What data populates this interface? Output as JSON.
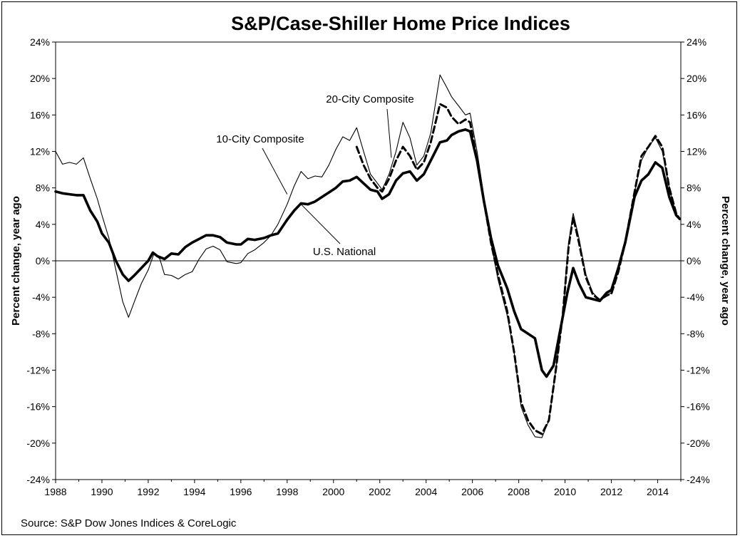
{
  "chart_data": {
    "type": "line",
    "title": "S&P/Case-Shiller Home Price Indices",
    "ylabel_left": "Percent change, year ago",
    "ylabel_right": "Percent change, year ago",
    "source": "Source: S&P Dow Jones Indices & CoreLogic",
    "xlim": [
      1988,
      2015
    ],
    "ylim": [
      -24,
      24
    ],
    "x_ticks": [
      1988,
      1990,
      1992,
      1994,
      1996,
      1998,
      2000,
      2002,
      2004,
      2006,
      2008,
      2010,
      2012,
      2014
    ],
    "x_tick_labels": [
      "1988",
      "1990",
      "1992",
      "1994",
      "1996",
      "1998",
      "2000",
      "2002",
      "2004",
      "2006",
      "2008",
      "2010",
      "2012",
      "2014"
    ],
    "y_ticks": [
      24,
      20,
      16,
      12,
      8,
      4,
      0,
      -4,
      -8,
      -12,
      -16,
      -20,
      -24
    ],
    "y_tick_labels": [
      "24%",
      "20%",
      "16%",
      "12%",
      "8%",
      "4%",
      "0%",
      "-4%",
      "-8%",
      "-12%",
      "-16%",
      "-20%",
      "-24%"
    ],
    "grid": false,
    "zero_line": true,
    "series": [
      {
        "name": "10-City Composite",
        "style": "thin",
        "color": "#000000",
        "points": [
          [
            1988.0,
            12.0
          ],
          [
            1988.3,
            10.6
          ],
          [
            1988.6,
            10.8
          ],
          [
            1988.9,
            10.6
          ],
          [
            1989.2,
            11.3
          ],
          [
            1989.5,
            9.0
          ],
          [
            1989.8,
            6.8
          ],
          [
            1990.0,
            5.0
          ],
          [
            1990.3,
            2.5
          ],
          [
            1990.6,
            -1.0
          ],
          [
            1990.9,
            -4.5
          ],
          [
            1991.15,
            -6.2
          ],
          [
            1991.4,
            -4.5
          ],
          [
            1991.7,
            -2.5
          ],
          [
            1992.0,
            -1.0
          ],
          [
            1992.25,
            0.8
          ],
          [
            1992.5,
            0.2
          ],
          [
            1992.7,
            -1.5
          ],
          [
            1993.0,
            -1.6
          ],
          [
            1993.3,
            -2.0
          ],
          [
            1993.6,
            -1.5
          ],
          [
            1993.9,
            -1.2
          ],
          [
            1994.2,
            0.2
          ],
          [
            1994.5,
            1.3
          ],
          [
            1994.8,
            1.6
          ],
          [
            1995.1,
            1.2
          ],
          [
            1995.4,
            -0.1
          ],
          [
            1995.8,
            -0.3
          ],
          [
            1996.0,
            -0.2
          ],
          [
            1996.3,
            0.8
          ],
          [
            1996.6,
            1.2
          ],
          [
            1997.0,
            2.0
          ],
          [
            1997.3,
            2.8
          ],
          [
            1997.6,
            4.0
          ],
          [
            1998.0,
            6.2
          ],
          [
            1998.3,
            8.2
          ],
          [
            1998.6,
            9.8
          ],
          [
            1998.9,
            9.0
          ],
          [
            1999.2,
            9.3
          ],
          [
            1999.5,
            9.2
          ],
          [
            1999.8,
            10.5
          ],
          [
            2000.1,
            12.2
          ],
          [
            2000.4,
            13.6
          ],
          [
            2000.7,
            13.2
          ],
          [
            2001.0,
            14.6
          ],
          [
            2001.3,
            12.0
          ],
          [
            2001.6,
            9.5
          ],
          [
            2001.9,
            8.5
          ],
          [
            2002.1,
            7.8
          ],
          [
            2002.4,
            9.5
          ],
          [
            2002.7,
            12.0
          ],
          [
            2003.0,
            15.2
          ],
          [
            2003.3,
            13.5
          ],
          [
            2003.6,
            10.5
          ],
          [
            2003.9,
            11.5
          ],
          [
            2004.2,
            14.0
          ],
          [
            2004.6,
            20.4
          ],
          [
            2004.9,
            19.0
          ],
          [
            2005.1,
            18.0
          ],
          [
            2005.4,
            17.0
          ],
          [
            2005.7,
            16.0
          ],
          [
            2005.9,
            16.2
          ],
          [
            2006.2,
            12.0
          ],
          [
            2006.5,
            7.0
          ],
          [
            2006.8,
            2.0
          ],
          [
            2007.1,
            -2.0
          ],
          [
            2007.5,
            -6.0
          ],
          [
            2007.8,
            -10.0
          ],
          [
            2008.1,
            -16.0
          ],
          [
            2008.4,
            -18.0
          ],
          [
            2008.7,
            -19.3
          ],
          [
            2009.0,
            -19.4
          ],
          [
            2009.3,
            -17.5
          ],
          [
            2009.6,
            -12.0
          ],
          [
            2009.9,
            -6.0
          ],
          [
            2010.15,
            2.0
          ],
          [
            2010.35,
            5.2
          ],
          [
            2010.6,
            2.5
          ],
          [
            2010.9,
            -1.5
          ],
          [
            2011.2,
            -3.5
          ],
          [
            2011.5,
            -4.3
          ],
          [
            2011.8,
            -3.8
          ],
          [
            2012.0,
            -3.5
          ],
          [
            2012.3,
            -1.0
          ],
          [
            2012.6,
            2.0
          ],
          [
            2013.0,
            7.5
          ],
          [
            2013.3,
            11.0
          ],
          [
            2013.6,
            12.5
          ],
          [
            2013.9,
            13.5
          ],
          [
            2014.2,
            12.0
          ],
          [
            2014.5,
            8.0
          ],
          [
            2014.8,
            5.0
          ],
          [
            2014.95,
            4.5
          ]
        ]
      },
      {
        "name": "20-City Composite",
        "style": "dashed",
        "color": "#000000",
        "points": [
          [
            2001.0,
            12.5
          ],
          [
            2001.3,
            10.5
          ],
          [
            2001.6,
            9.0
          ],
          [
            2001.9,
            8.0
          ],
          [
            2002.1,
            7.6
          ],
          [
            2002.4,
            9.0
          ],
          [
            2002.7,
            11.0
          ],
          [
            2003.0,
            12.5
          ],
          [
            2003.3,
            11.5
          ],
          [
            2003.6,
            10.0
          ],
          [
            2003.9,
            10.8
          ],
          [
            2004.2,
            13.0
          ],
          [
            2004.6,
            17.2
          ],
          [
            2004.9,
            16.8
          ],
          [
            2005.1,
            15.8
          ],
          [
            2005.4,
            15.0
          ],
          [
            2005.7,
            15.5
          ],
          [
            2005.9,
            15.2
          ],
          [
            2006.2,
            11.0
          ],
          [
            2006.5,
            6.5
          ],
          [
            2006.8,
            2.0
          ],
          [
            2007.1,
            -1.5
          ],
          [
            2007.5,
            -5.5
          ],
          [
            2007.8,
            -10.0
          ],
          [
            2008.1,
            -15.5
          ],
          [
            2008.4,
            -17.5
          ],
          [
            2008.7,
            -18.6
          ],
          [
            2009.0,
            -19.0
          ],
          [
            2009.3,
            -17.5
          ],
          [
            2009.6,
            -12.0
          ],
          [
            2009.9,
            -6.0
          ],
          [
            2010.15,
            1.5
          ],
          [
            2010.35,
            4.8
          ],
          [
            2010.6,
            2.0
          ],
          [
            2010.9,
            -1.8
          ],
          [
            2011.2,
            -3.7
          ],
          [
            2011.5,
            -4.3
          ],
          [
            2011.8,
            -3.8
          ],
          [
            2012.0,
            -3.6
          ],
          [
            2012.3,
            -1.2
          ],
          [
            2012.6,
            2.0
          ],
          [
            2013.0,
            7.5
          ],
          [
            2013.3,
            11.5
          ],
          [
            2013.6,
            12.5
          ],
          [
            2013.9,
            13.7
          ],
          [
            2014.2,
            12.5
          ],
          [
            2014.5,
            8.0
          ],
          [
            2014.8,
            5.2
          ],
          [
            2014.95,
            4.6
          ]
        ]
      },
      {
        "name": "U.S. National",
        "style": "thick",
        "color": "#000000",
        "points": [
          [
            1988.0,
            7.6
          ],
          [
            1988.3,
            7.4
          ],
          [
            1988.6,
            7.3
          ],
          [
            1988.9,
            7.2
          ],
          [
            1989.2,
            7.2
          ],
          [
            1989.5,
            5.5
          ],
          [
            1989.8,
            4.3
          ],
          [
            1990.0,
            3.0
          ],
          [
            1990.3,
            2.0
          ],
          [
            1990.6,
            0.0
          ],
          [
            1990.9,
            -1.5
          ],
          [
            1991.15,
            -2.2
          ],
          [
            1991.4,
            -1.6
          ],
          [
            1991.7,
            -0.8
          ],
          [
            1992.0,
            0.0
          ],
          [
            1992.2,
            0.9
          ],
          [
            1992.4,
            0.5
          ],
          [
            1992.7,
            0.2
          ],
          [
            1993.0,
            0.8
          ],
          [
            1993.3,
            0.7
          ],
          [
            1993.6,
            1.5
          ],
          [
            1993.9,
            2.0
          ],
          [
            1994.2,
            2.4
          ],
          [
            1994.5,
            2.8
          ],
          [
            1994.8,
            2.8
          ],
          [
            1995.1,
            2.6
          ],
          [
            1995.4,
            2.0
          ],
          [
            1995.8,
            1.8
          ],
          [
            1996.0,
            1.8
          ],
          [
            1996.3,
            2.4
          ],
          [
            1996.6,
            2.3
          ],
          [
            1997.0,
            2.5
          ],
          [
            1997.3,
            2.8
          ],
          [
            1997.6,
            3.0
          ],
          [
            1998.0,
            4.5
          ],
          [
            1998.3,
            5.5
          ],
          [
            1998.6,
            6.3
          ],
          [
            1998.9,
            6.2
          ],
          [
            1999.2,
            6.5
          ],
          [
            1999.5,
            7.0
          ],
          [
            1999.8,
            7.5
          ],
          [
            2000.1,
            8.0
          ],
          [
            2000.4,
            8.7
          ],
          [
            2000.7,
            8.8
          ],
          [
            2001.0,
            9.2
          ],
          [
            2001.3,
            8.5
          ],
          [
            2001.6,
            7.8
          ],
          [
            2001.9,
            7.6
          ],
          [
            2002.1,
            6.8
          ],
          [
            2002.4,
            7.3
          ],
          [
            2002.7,
            8.8
          ],
          [
            2003.0,
            9.6
          ],
          [
            2003.3,
            9.8
          ],
          [
            2003.6,
            8.8
          ],
          [
            2003.9,
            9.5
          ],
          [
            2004.2,
            11.0
          ],
          [
            2004.6,
            13.0
          ],
          [
            2004.9,
            13.2
          ],
          [
            2005.1,
            13.8
          ],
          [
            2005.4,
            14.2
          ],
          [
            2005.7,
            14.4
          ],
          [
            2005.9,
            14.2
          ],
          [
            2006.2,
            11.0
          ],
          [
            2006.5,
            6.5
          ],
          [
            2006.8,
            2.5
          ],
          [
            2007.1,
            -0.5
          ],
          [
            2007.5,
            -3.0
          ],
          [
            2007.8,
            -5.5
          ],
          [
            2008.1,
            -7.5
          ],
          [
            2008.4,
            -8.0
          ],
          [
            2008.7,
            -8.5
          ],
          [
            2009.0,
            -12.0
          ],
          [
            2009.2,
            -12.7
          ],
          [
            2009.5,
            -11.5
          ],
          [
            2009.8,
            -7.5
          ],
          [
            2010.1,
            -3.5
          ],
          [
            2010.35,
            -0.8
          ],
          [
            2010.6,
            -2.5
          ],
          [
            2010.9,
            -4.0
          ],
          [
            2011.2,
            -4.2
          ],
          [
            2011.5,
            -4.4
          ],
          [
            2011.8,
            -3.5
          ],
          [
            2012.0,
            -3.2
          ],
          [
            2012.3,
            -0.8
          ],
          [
            2012.6,
            2.0
          ],
          [
            2013.0,
            7.0
          ],
          [
            2013.3,
            8.8
          ],
          [
            2013.6,
            9.5
          ],
          [
            2013.9,
            10.8
          ],
          [
            2014.2,
            10.2
          ],
          [
            2014.5,
            7.0
          ],
          [
            2014.8,
            5.0
          ],
          [
            2014.95,
            4.6
          ]
        ]
      }
    ],
    "annotations": [
      {
        "text": "20-City Composite",
        "series": "20-City Composite",
        "point_to": [
          2002.5,
          11.3
        ]
      },
      {
        "text": "10-City Composite",
        "series": "10-City Composite",
        "point_to": [
          1998.0,
          7.3
        ]
      },
      {
        "text": "U.S. National",
        "series": "U.S. National",
        "point_to": [
          1998.6,
          6.2
        ]
      }
    ]
  }
}
